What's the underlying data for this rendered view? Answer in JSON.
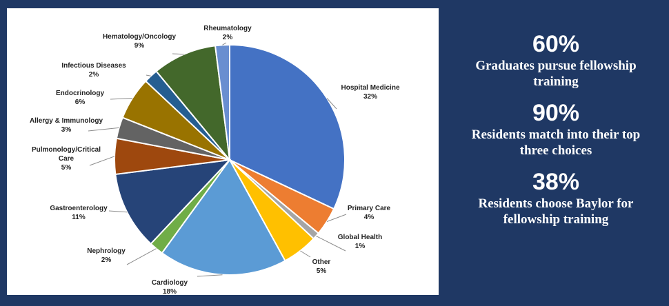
{
  "chart_data": {
    "type": "pie",
    "slices": [
      {
        "label": "Hospital Medicine",
        "value_label": "32%",
        "value": 32,
        "color": "#4472c4"
      },
      {
        "label": "Primary Care",
        "value_label": "4%",
        "value": 4,
        "color": "#ed7d31"
      },
      {
        "label": "Global Health",
        "value_label": "1%",
        "value": 1,
        "color": "#a5a5a5"
      },
      {
        "label": "Other",
        "value_label": "5%",
        "value": 5,
        "color": "#ffc000"
      },
      {
        "label": "Cardiology",
        "value_label": "18%",
        "value": 18,
        "color": "#5b9bd5"
      },
      {
        "label": "Nephrology",
        "value_label": "2%",
        "value": 2,
        "color": "#70ad47"
      },
      {
        "label": "Gastroenterology",
        "value_label": "11%",
        "value": 11,
        "color": "#264478"
      },
      {
        "label": "Pulmonology/Critical Care",
        "value_label": "5%",
        "value": 5,
        "color": "#9e480e"
      },
      {
        "label": "Allergy & Immunology",
        "value_label": "3%",
        "value": 3,
        "color": "#636363"
      },
      {
        "label": "Endocrinology",
        "value_label": "6%",
        "value": 6,
        "color": "#997300"
      },
      {
        "label": "Infectious Diseases",
        "value_label": "2%",
        "value": 2,
        "color": "#255e91"
      },
      {
        "label": "Hematology/Oncology",
        "value_label": "9%",
        "value": 9,
        "color": "#43682b"
      },
      {
        "label": "Rheumatology",
        "value_label": "2%",
        "value": 2,
        "color": "#698ed0"
      }
    ]
  },
  "stats": [
    {
      "value": "60%",
      "caption": "Graduates pursue fellowship training"
    },
    {
      "value": "90%",
      "caption": "Residents match into their top three choices"
    },
    {
      "value": "38%",
      "caption": "Residents choose Baylor for fellowship training"
    }
  ]
}
